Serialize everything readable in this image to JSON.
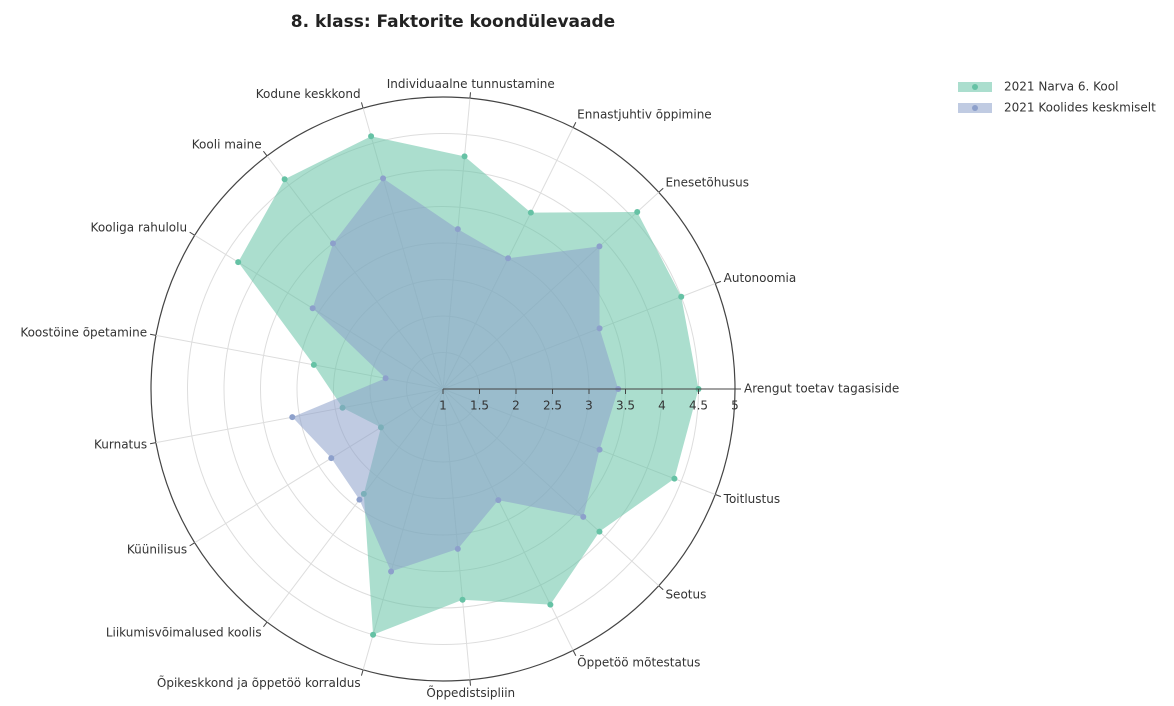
{
  "chart_data": {
    "type": "radar",
    "title": "8. klass: Faktorite koondülevaade",
    "categories": [
      "Arengut toetav tagasiside",
      "Autonoomia",
      "Enesetõhusus",
      "Ennastjuhtiv õppimine",
      "Individuaalne tunnustamine",
      "Kodune keskkond",
      "Kooli maine",
      "Kooliga rahulolu",
      "Koostöine õpetamine",
      "Kurnatus",
      "Küünilisus",
      "Liikumisvõimalused koolis",
      "Õpikeskkond ja õppetöö korraldus",
      "Õppedistsipliin",
      "Õppetöö mõtestatus",
      "Seotus",
      "Toitlustus"
    ],
    "series": [
      {
        "name": "2021 Narva 6. Kool",
        "color": "#66c2a5",
        "values": [
          4.5,
          4.5,
          4.6,
          3.7,
          4.2,
          4.6,
          4.6,
          4.3,
          2.8,
          2.4,
          2.0,
          2.8,
          4.5,
          3.9,
          4.3,
          3.9,
          4.4
        ]
      },
      {
        "name": "2021 Koolides keskmiselt",
        "color": "#8da0cb",
        "values": [
          3.4,
          3.3,
          3.9,
          3.0,
          3.2,
          4.0,
          3.5,
          3.1,
          1.8,
          3.1,
          2.8,
          2.9,
          3.6,
          3.2,
          2.7,
          3.6,
          3.3
        ]
      }
    ],
    "rlim": [
      1,
      5
    ],
    "rticks": [
      1,
      1.5,
      2,
      2.5,
      3,
      3.5,
      4,
      4.5,
      5
    ],
    "grid": true,
    "legend": "top-right"
  }
}
